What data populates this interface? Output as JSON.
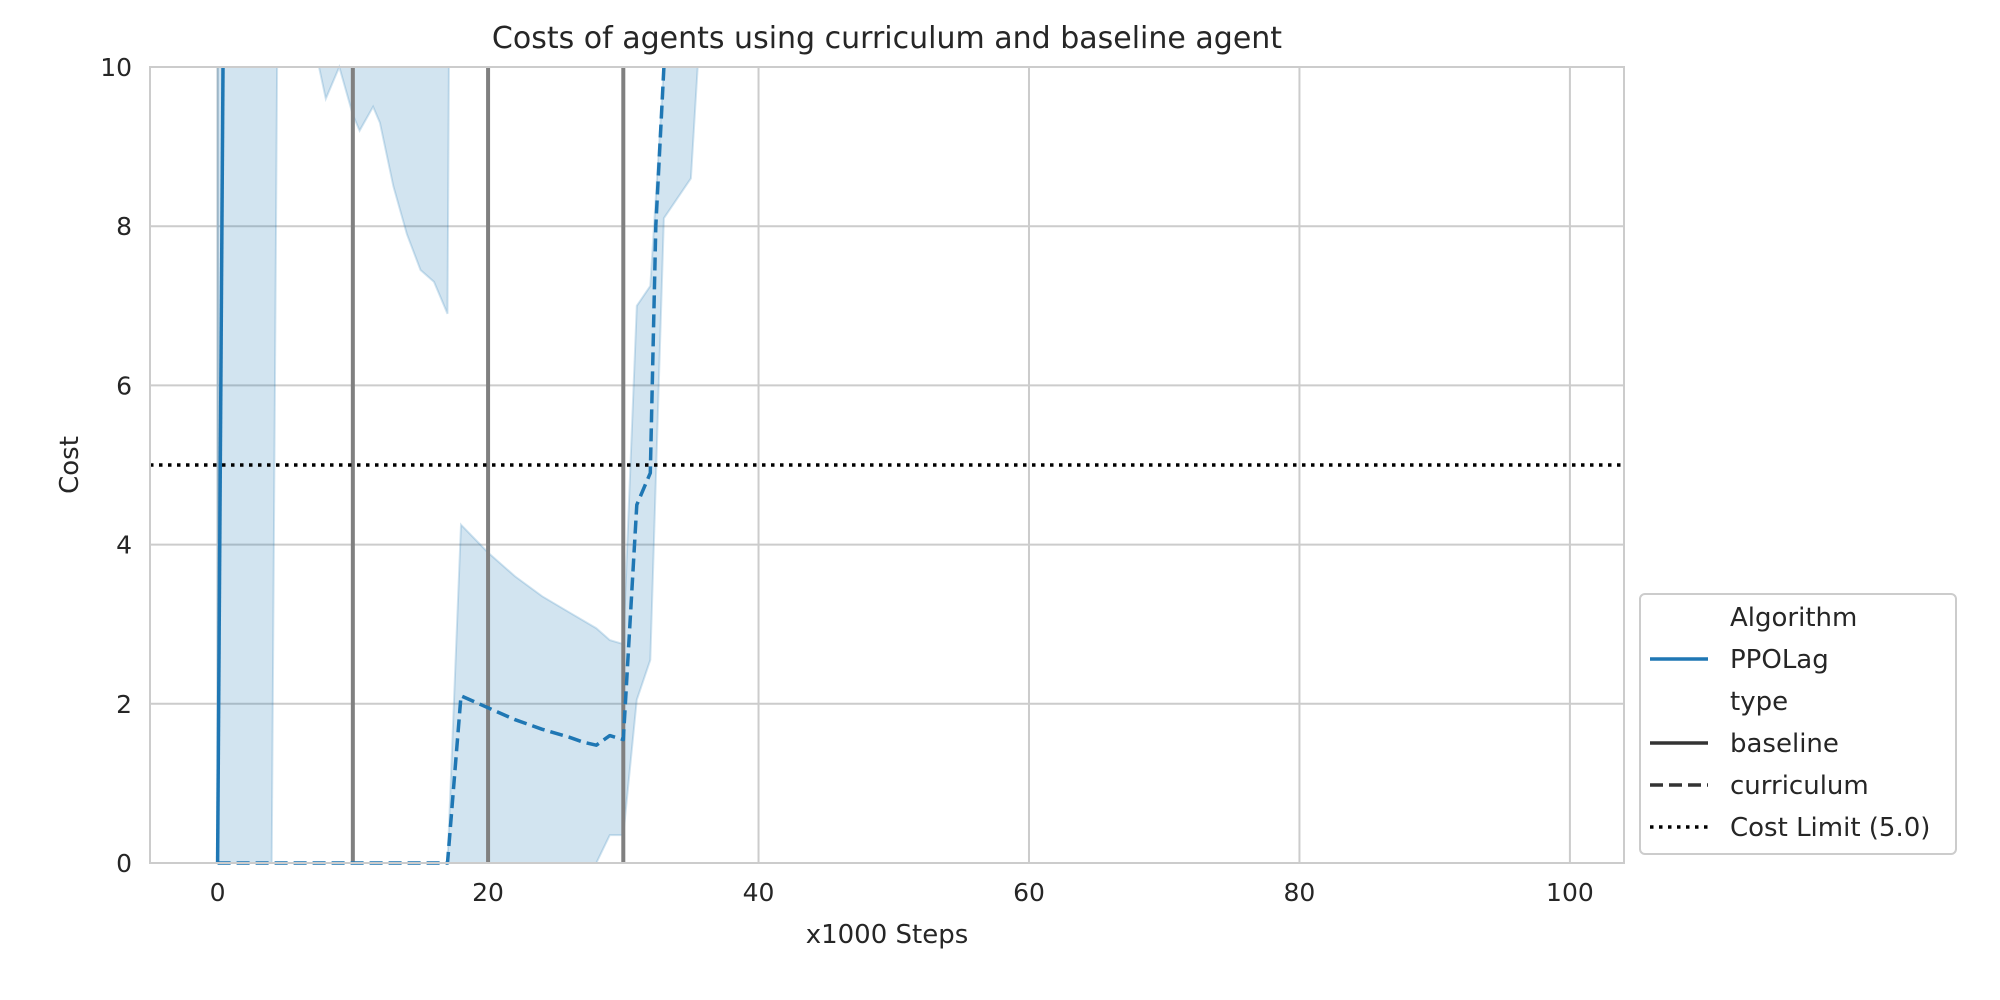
{
  "chart_data": {
    "type": "line",
    "title": "Costs of agents using curriculum and baseline agent",
    "xlabel": "x1000 Steps",
    "ylabel": "Cost",
    "xlim": [
      -5,
      104
    ],
    "ylim": [
      0,
      10
    ],
    "xticks": [
      0,
      20,
      40,
      60,
      80,
      100
    ],
    "yticks": [
      0,
      2,
      4,
      6,
      8,
      10
    ],
    "grid": true,
    "legend_position": "lower-right outside",
    "colors": {
      "series": "#1f77b4",
      "band": "#1f77b4",
      "stage_line": "#808080",
      "limit": "#000000",
      "grid": "#cccccc"
    },
    "stage_lines_x": [
      10,
      20,
      30
    ],
    "cost_limit": {
      "label": "Cost Limit (5.0)",
      "value": 5.0
    },
    "series": [
      {
        "algorithm": "PPOLag",
        "type": "baseline",
        "style": "solid",
        "points": [
          [
            0,
            0
          ],
          [
            0.4,
            10
          ]
        ],
        "band_segments": [
          [
            [
              0,
              0,
              10
            ],
            [
              3.4,
              0,
              10
            ],
            [
              4,
              0,
              10
            ],
            [
              4.4,
              10,
              10
            ]
          ],
          [
            [
              7.5,
              10,
              10
            ],
            [
              8,
              9.6,
              10
            ],
            [
              9,
              10,
              10
            ],
            [
              10,
              9.4,
              10
            ],
            [
              10.5,
              9.2,
              10
            ],
            [
              11.5,
              9.5,
              10
            ],
            [
              12,
              9.3,
              10
            ],
            [
              13,
              8.5,
              10
            ],
            [
              14,
              7.9,
              10
            ],
            [
              15,
              7.45,
              10
            ],
            [
              16,
              7.3,
              10
            ],
            [
              17,
              6.9,
              10
            ],
            [
              17.1,
              10,
              10
            ]
          ]
        ]
      },
      {
        "algorithm": "PPOLag",
        "type": "curriculum",
        "style": "dashed",
        "points": [
          [
            0,
            0
          ],
          [
            17,
            0
          ],
          [
            18,
            2.1
          ],
          [
            20,
            1.95
          ],
          [
            22,
            1.8
          ],
          [
            24,
            1.68
          ],
          [
            26,
            1.58
          ],
          [
            27,
            1.52
          ],
          [
            28,
            1.48
          ],
          [
            29,
            1.6
          ],
          [
            30,
            1.55
          ],
          [
            31,
            4.5
          ],
          [
            32,
            4.9
          ],
          [
            32.4,
            8.0
          ],
          [
            33,
            10
          ]
        ],
        "band_segments": [
          [
            [
              17,
              0,
              0
            ],
            [
              18,
              0,
              4.25
            ],
            [
              20,
              0,
              3.9
            ],
            [
              22,
              0,
              3.6
            ],
            [
              24,
              0,
              3.35
            ],
            [
              26,
              0,
              3.15
            ],
            [
              28,
              0,
              2.95
            ],
            [
              29,
              0.35,
              2.8
            ],
            [
              30,
              0.35,
              2.75
            ],
            [
              31,
              2.05,
              7.0
            ],
            [
              32,
              2.55,
              7.25
            ],
            [
              33,
              8.1,
              10
            ],
            [
              35,
              8.6,
              10
            ],
            [
              35.5,
              10,
              10
            ]
          ]
        ]
      }
    ],
    "legend": {
      "group1_title": "Algorithm",
      "algorithm": "PPOLag",
      "group2_title": "type",
      "type_solid": "baseline",
      "type_dashed": "curriculum",
      "limit": "Cost Limit (5.0)"
    }
  }
}
